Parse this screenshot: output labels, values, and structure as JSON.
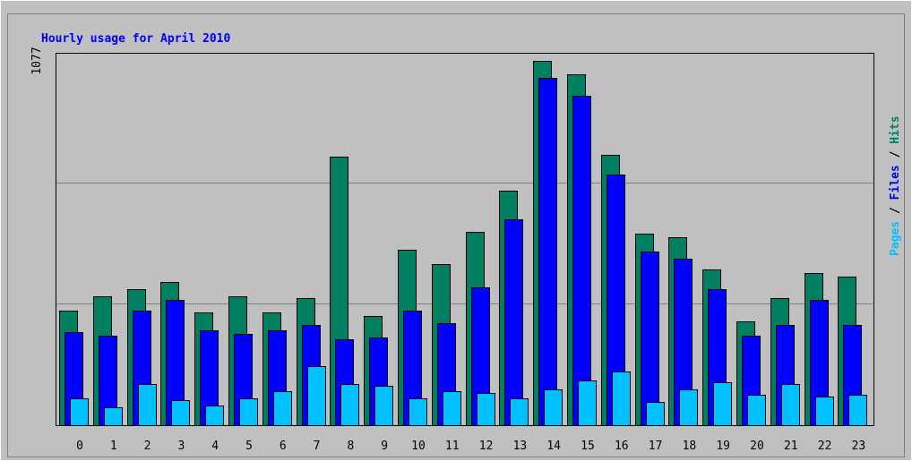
{
  "chart_data": {
    "type": "bar",
    "title": "Hourly usage for April 2010",
    "categories": [
      "0",
      "1",
      "2",
      "3",
      "4",
      "5",
      "6",
      "7",
      "8",
      "9",
      "10",
      "11",
      "12",
      "13",
      "14",
      "15",
      "16",
      "17",
      "18",
      "19",
      "20",
      "21",
      "22",
      "23"
    ],
    "series": [
      {
        "name": "Hits",
        "color": "#008060",
        "values": [
          339,
          381,
          402,
          423,
          333,
          381,
          333,
          376,
          794,
          323,
          519,
          476,
          572,
          693,
          1077,
          1037,
          799,
          566,
          556,
          460,
          307,
          376,
          450,
          439
        ]
      },
      {
        "name": "Files",
        "color": "#0000ff",
        "values": [
          275,
          265,
          339,
          370,
          280,
          270,
          280,
          296,
          254,
          259,
          339,
          302,
          407,
          609,
          1027,
          974,
          741,
          513,
          492,
          402,
          265,
          296,
          370,
          296
        ]
      },
      {
        "name": "Pages",
        "color": "#00c0ff",
        "values": [
          79,
          53,
          122,
          74,
          58,
          79,
          101,
          175,
          122,
          116,
          79,
          101,
          95,
          79,
          106,
          132,
          159,
          69,
          106,
          127,
          90,
          122,
          85,
          90
        ]
      }
    ],
    "ylim": [
      0,
      1077
    ],
    "yticks": [
      1077
    ],
    "grid_lines": [
      359,
      718
    ],
    "grid": true
  }
}
